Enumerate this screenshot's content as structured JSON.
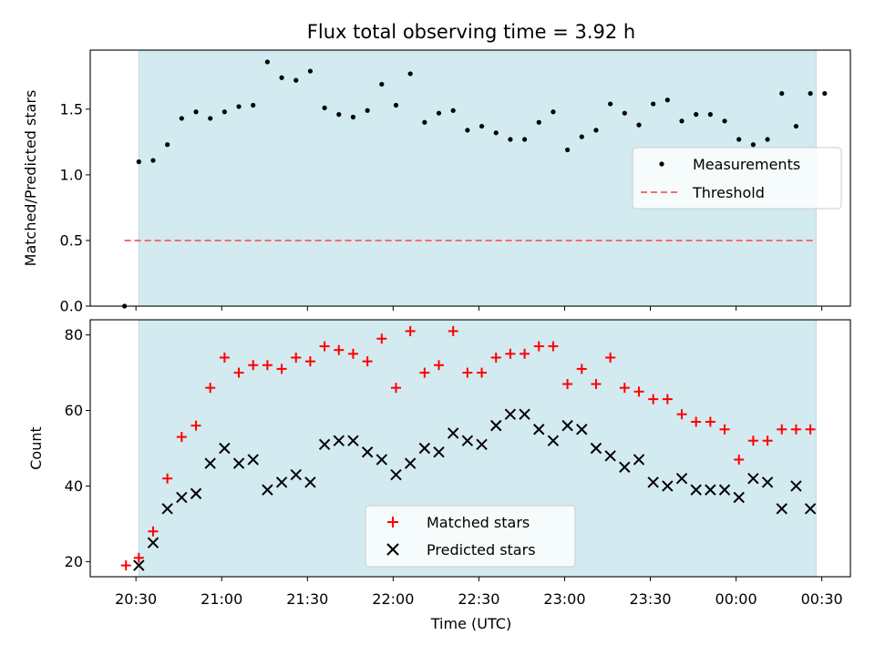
{
  "chart_data": [
    {
      "type": "scatter",
      "title": "Flux total observing time = 3.92 h",
      "xlabel": "",
      "ylabel": "Matched/Predicted stars",
      "ylim": [
        0,
        1.95
      ],
      "y_ticks": [
        "0.0",
        "0.5",
        "1.0",
        "1.5"
      ],
      "y_tick_values": [
        0,
        0.5,
        1.0,
        1.5
      ],
      "shaded_interval_minutes": [
        2,
        476
      ],
      "legend_position": "center-right",
      "series": [
        {
          "name": "Measurements",
          "marker": "dot",
          "color": "#000000",
          "x_minutes": [
            -8,
            2,
            12,
            22,
            32,
            42,
            52,
            62,
            72,
            82,
            92,
            102,
            112,
            122,
            132,
            142,
            152,
            162,
            172,
            182,
            192,
            202,
            212,
            222,
            232,
            242,
            252,
            262,
            272,
            282,
            292,
            302,
            312,
            322,
            332,
            342,
            352,
            362,
            372,
            382,
            392,
            402,
            412,
            422,
            432,
            442,
            452,
            462,
            472,
            482
          ],
          "values": [
            0.0,
            1.1,
            1.11,
            1.23,
            1.43,
            1.48,
            1.43,
            1.48,
            1.52,
            1.53,
            1.86,
            1.74,
            1.72,
            1.79,
            1.51,
            1.46,
            1.44,
            1.49,
            1.69,
            1.53,
            1.77,
            1.4,
            1.47,
            1.49,
            1.34,
            1.37,
            1.32,
            1.27,
            1.27,
            1.4,
            1.48,
            1.19,
            1.29,
            1.34,
            1.54,
            1.47,
            1.38,
            1.54,
            1.57,
            1.41,
            1.46,
            1.46,
            1.41,
            1.27,
            1.23,
            1.27,
            1.62,
            1.37,
            1.62,
            1.62
          ]
        },
        {
          "name": "Threshold",
          "style": "dashed",
          "color": "#f07070",
          "x_minutes": [
            -8,
            476
          ],
          "values": [
            0.5,
            0.5
          ]
        }
      ]
    },
    {
      "type": "scatter",
      "xlabel": "Time (UTC)",
      "ylabel": "Count",
      "ylim": [
        16,
        84
      ],
      "y_ticks": [
        "20",
        "40",
        "60",
        "80"
      ],
      "y_tick_values": [
        20,
        40,
        60,
        80
      ],
      "x_ticks": [
        "20:30",
        "21:00",
        "21:30",
        "22:00",
        "22:30",
        "23:00",
        "23:30",
        "00:00",
        "00:30"
      ],
      "x_tick_minutes": [
        0,
        60,
        120,
        180,
        240,
        300,
        360,
        420,
        480
      ],
      "x_range_minutes": [
        -32,
        500
      ],
      "shaded_interval_minutes": [
        2,
        476
      ],
      "legend_position": "bottom-center",
      "series": [
        {
          "name": "Matched stars",
          "marker": "plus",
          "color": "#ff0000",
          "x_minutes": [
            -7,
            2,
            12,
            22,
            32,
            42,
            52,
            62,
            72,
            82,
            92,
            102,
            112,
            122,
            132,
            142,
            152,
            162,
            172,
            182,
            192,
            202,
            212,
            222,
            232,
            242,
            252,
            262,
            272,
            282,
            292,
            302,
            312,
            322,
            332,
            342,
            352,
            362,
            372,
            382,
            392,
            402,
            412,
            422,
            432,
            442,
            452,
            462,
            472
          ],
          "values": [
            19,
            21,
            28,
            42,
            53,
            56,
            66,
            74,
            70,
            72,
            72,
            71,
            74,
            73,
            77,
            76,
            75,
            73,
            79,
            66,
            81,
            70,
            72,
            81,
            70,
            70,
            74,
            75,
            75,
            77,
            77,
            67,
            71,
            67,
            74,
            66,
            65,
            63,
            63,
            59,
            57,
            57,
            55,
            47,
            52,
            52,
            55,
            55,
            55
          ]
        },
        {
          "name": "Predicted stars",
          "marker": "x",
          "color": "#000000",
          "x_minutes": [
            2,
            12,
            22,
            32,
            42,
            52,
            62,
            72,
            82,
            92,
            102,
            112,
            122,
            132,
            142,
            152,
            162,
            172,
            182,
            192,
            202,
            212,
            222,
            232,
            242,
            252,
            262,
            272,
            282,
            292,
            302,
            312,
            322,
            332,
            342,
            352,
            362,
            372,
            382,
            392,
            402,
            412,
            422,
            432,
            442,
            452,
            462,
            472
          ],
          "values": [
            19,
            25,
            34,
            37,
            38,
            46,
            50,
            46,
            47,
            39,
            41,
            43,
            41,
            51,
            52,
            52,
            49,
            47,
            43,
            46,
            50,
            49,
            54,
            52,
            51,
            56,
            59,
            59,
            55,
            52,
            56,
            55,
            50,
            48,
            45,
            47,
            41,
            40,
            42,
            39,
            39,
            39,
            37,
            42,
            41,
            34,
            40,
            34
          ]
        }
      ]
    }
  ],
  "colors": {
    "shade": "#d3eaf0",
    "shade_edge": "#b9dce6",
    "axes": "#000000"
  }
}
